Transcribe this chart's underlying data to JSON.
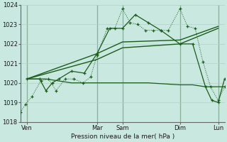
{
  "xlabel": "Pression niveau de la mer( hPa )",
  "bg_color": "#c8e8e0",
  "grid_color": "#b0d0c8",
  "line_color": "#1a5c1a",
  "vline_color": "#336633",
  "ylim": [
    1018,
    1024
  ],
  "yticks": [
    1018,
    1019,
    1020,
    1021,
    1022,
    1023,
    1024
  ],
  "xlim": [
    0,
    16
  ],
  "xtick_positions": [
    0.5,
    6.0,
    8.0,
    12.5,
    15.5
  ],
  "xtick_labels": [
    "Ven",
    "Mar",
    "Sam",
    "Dim",
    "Lun"
  ],
  "vlines": [
    0.5,
    6.0,
    8.0,
    12.5,
    15.5
  ],
  "series_dotted_x": [
    0.0,
    0.4,
    0.9,
    1.6,
    2.2,
    2.8,
    3.5,
    4.2,
    4.9,
    5.5,
    6.0,
    6.8,
    7.4,
    8.0,
    8.6,
    9.2,
    9.8,
    10.4,
    11.0,
    11.6,
    12.5,
    13.1,
    13.7,
    14.3,
    14.9,
    15.5,
    16.0
  ],
  "series_dotted_y": [
    1018.5,
    1018.9,
    1019.3,
    1020.1,
    1020.2,
    1019.6,
    1020.2,
    1020.2,
    1020.0,
    1020.3,
    1021.4,
    1022.8,
    1022.8,
    1023.8,
    1023.1,
    1023.0,
    1022.7,
    1022.7,
    1022.7,
    1022.7,
    1023.8,
    1022.9,
    1022.8,
    1021.1,
    1019.8,
    1019.1,
    1019.8
  ],
  "series_flat_x": [
    0.5,
    2.0,
    4.0,
    6.0,
    8.0,
    10.0,
    12.5,
    13.5,
    14.5,
    15.5,
    16.0
  ],
  "series_flat_y": [
    1020.2,
    1020.2,
    1020.0,
    1020.0,
    1020.0,
    1020.0,
    1019.9,
    1019.9,
    1019.8,
    1019.8,
    1019.8
  ],
  "series_jagged_x": [
    0.5,
    1.5,
    2.0,
    2.5,
    3.0,
    4.0,
    5.0,
    6.0,
    7.0,
    8.0,
    9.0,
    10.0,
    11.0,
    12.5,
    13.5,
    14.5,
    15.0,
    15.5,
    16.0
  ],
  "series_jagged_y": [
    1020.2,
    1020.2,
    1019.6,
    1020.0,
    1020.2,
    1020.6,
    1020.5,
    1021.5,
    1022.8,
    1022.8,
    1023.5,
    1023.1,
    1022.7,
    1022.0,
    1022.0,
    1019.8,
    1019.1,
    1019.0,
    1020.2
  ],
  "series_smooth1_x": [
    0.5,
    6.0,
    8.0,
    12.5,
    15.5
  ],
  "series_smooth1_y": [
    1020.2,
    1021.2,
    1021.8,
    1022.0,
    1022.8
  ],
  "series_smooth2_x": [
    0.5,
    6.0,
    8.0,
    12.5,
    15.5
  ],
  "series_smooth2_y": [
    1020.2,
    1021.5,
    1022.1,
    1022.2,
    1022.9
  ]
}
